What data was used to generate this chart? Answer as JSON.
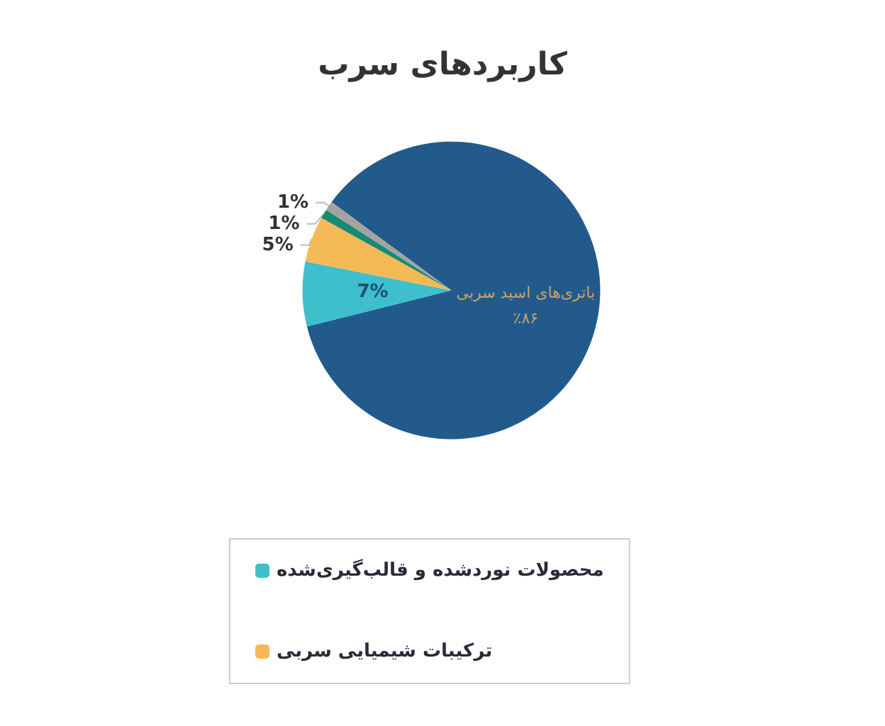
{
  "chart_data": {
    "type": "pie",
    "title": "کاربردهای سرب",
    "categories": [
      "باتری‌های اسید سربی",
      "محصولات نوردشده و قالب‌گیری‌شده",
      "ترکیبات شیمیایی سربی",
      null,
      null
    ],
    "values": [
      86,
      7,
      5,
      1,
      1
    ],
    "value_labels": [
      "٪۸۶",
      "7%",
      "5%",
      "1%",
      "1%"
    ],
    "colors": [
      "#235a8c",
      "#3dbfcc",
      "#f5b955",
      "#178a74",
      "#a3a3a3"
    ],
    "legend": "bottom left"
  }
}
